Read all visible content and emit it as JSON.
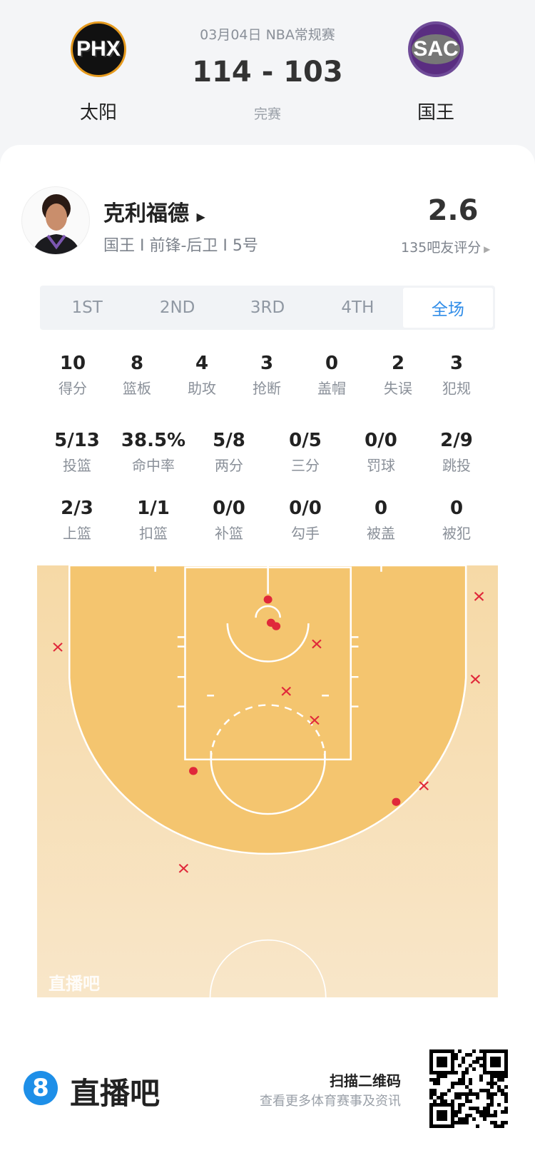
{
  "header": {
    "date_league": "03月04日 NBA常规赛",
    "score": "114 - 103",
    "status": "完赛",
    "home": {
      "abbr": "PHX",
      "name": "太阳"
    },
    "away": {
      "abbr": "SAC",
      "name": "国王"
    }
  },
  "player": {
    "name": "克利福德",
    "info": "国王 I 前锋-后卫 I 5号",
    "rating": "2.6",
    "rating_label": "135吧友评分"
  },
  "tabs": [
    {
      "label": "1ST"
    },
    {
      "label": "2ND"
    },
    {
      "label": "3RD"
    },
    {
      "label": "4TH"
    },
    {
      "label": "全场",
      "active": true
    }
  ],
  "stats_row1": [
    {
      "v": "10",
      "l": "得分"
    },
    {
      "v": "8",
      "l": "篮板"
    },
    {
      "v": "4",
      "l": "助攻"
    },
    {
      "v": "3",
      "l": "抢断"
    },
    {
      "v": "0",
      "l": "盖帽"
    },
    {
      "v": "2",
      "l": "失误"
    },
    {
      "v": "3",
      "l": "犯规"
    }
  ],
  "stats_row2": [
    {
      "v": "5/13",
      "l": "投篮"
    },
    {
      "v": "38.5%",
      "l": "命中率"
    },
    {
      "v": "5/8",
      "l": "两分"
    },
    {
      "v": "0/5",
      "l": "三分"
    },
    {
      "v": "0/0",
      "l": "罚球"
    },
    {
      "v": "2/9",
      "l": "跳投"
    }
  ],
  "stats_row3": [
    {
      "v": "2/3",
      "l": "上篮"
    },
    {
      "v": "1/1",
      "l": "扣篮"
    },
    {
      "v": "0/0",
      "l": "补篮"
    },
    {
      "v": "0/0",
      "l": "勾手"
    },
    {
      "v": "0",
      "l": "被盖"
    },
    {
      "v": "0",
      "l": "被犯"
    }
  ],
  "shot_chart": {
    "watermark": "直播吧",
    "made_color": "#e0283a",
    "miss_color": "#e0283a",
    "made_count": 5,
    "missed_count": 8
  },
  "footer": {
    "brand": "直播吧",
    "qr_title": "扫描二维码",
    "qr_subtitle": "查看更多体育赛事及资讯"
  }
}
